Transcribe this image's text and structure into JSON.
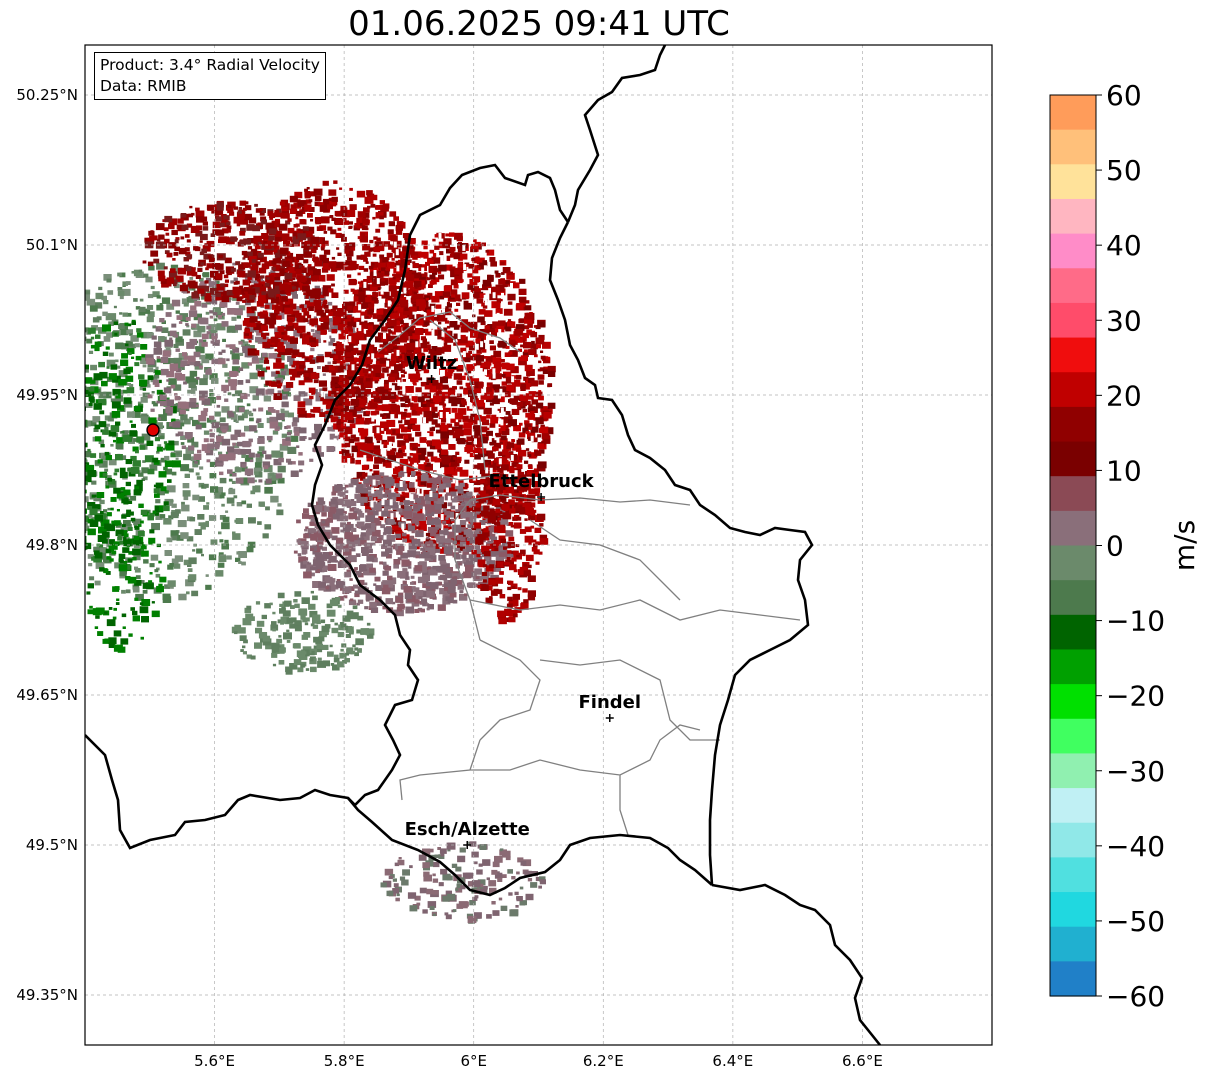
{
  "title": "01.06.2025 09:41 UTC",
  "info_box": {
    "product": "Product: 3.4° Radial Velocity",
    "data": "Data: RMIB"
  },
  "map": {
    "lon_ticks": [
      "5.6°E",
      "5.8°E",
      "6°E",
      "6.2°E",
      "6.4°E",
      "6.6°E"
    ],
    "lat_ticks": [
      "50.25°N",
      "50.1°N",
      "49.95°N",
      "49.8°N",
      "49.65°N",
      "49.5°N",
      "49.35°N"
    ],
    "lon_range": [
      5.4,
      6.8
    ],
    "lat_range": [
      49.3,
      50.3
    ],
    "grid": true,
    "radar_site": {
      "lon": 5.505,
      "lat": 49.915
    },
    "cities": [
      {
        "name": "Wiltz",
        "lon": 5.935,
        "lat": 49.966
      },
      {
        "name": "Ettelbruck",
        "lon": 6.104,
        "lat": 49.848
      },
      {
        "name": "Findel",
        "lon": 6.21,
        "lat": 49.627
      },
      {
        "name": "Esch/Alzette",
        "lon": 5.99,
        "lat": 49.5
      }
    ]
  },
  "colorbar": {
    "label": "m/s",
    "ticks": [
      "60",
      "50",
      "40",
      "30",
      "20",
      "10",
      "0",
      "−10",
      "−20",
      "−30",
      "−40",
      "−50",
      "−60"
    ],
    "range": [
      -60,
      60
    ],
    "colors_top_to_bottom": [
      "#ff9c5a",
      "#ffc07a",
      "#ffe29a",
      "#ffb6c1",
      "#ff8cc8",
      "#ff6b88",
      "#ff4c6a",
      "#f00d0d",
      "#c00000",
      "#900000",
      "#7a0000",
      "#8b4a55",
      "#8a6f7a",
      "#6b8a6b",
      "#4d7a4d",
      "#006400",
      "#00a000",
      "#00e000",
      "#40ff60",
      "#90f0b0",
      "#c0f0f4",
      "#90e8e8",
      "#50e0e0",
      "#20d8e0",
      "#20b0d0",
      "#2080c8"
    ]
  }
}
